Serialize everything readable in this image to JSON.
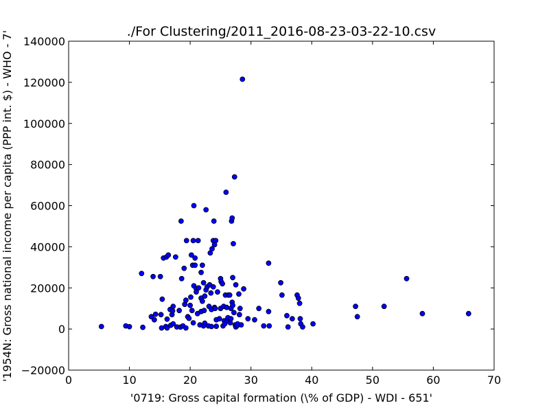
{
  "chart_data": {
    "type": "scatter",
    "title": "./For Clustering/2011_2016-08-23-03-22-10.csv",
    "xlabel": "'0719: Gross capital formation  (\\% of GDP) - WDI - 651'",
    "ylabel": "'1954N: Gross national income per capita (PPP int. $) - WHO - 7'",
    "xlim": [
      0,
      70
    ],
    "ylim": [
      -20000,
      140000
    ],
    "x_ticks": [
      0,
      10,
      20,
      30,
      40,
      50,
      60,
      70
    ],
    "y_ticks": [
      -20000,
      0,
      20000,
      40000,
      60000,
      80000,
      100000,
      120000,
      140000
    ],
    "grid": false,
    "marker_color": "#0000ff",
    "points": [
      [
        5.4,
        1200
      ],
      [
        9.4,
        1500
      ],
      [
        10.0,
        1100
      ],
      [
        12.2,
        800
      ],
      [
        12.0,
        27000
      ],
      [
        13.6,
        6000
      ],
      [
        13.9,
        25500
      ],
      [
        14.1,
        4500
      ],
      [
        14.3,
        7200
      ],
      [
        15.1,
        25500
      ],
      [
        15.2,
        7000
      ],
      [
        15.3,
        500
      ],
      [
        15.4,
        14500
      ],
      [
        15.6,
        34500
      ],
      [
        16.0,
        1200
      ],
      [
        16.1,
        35000
      ],
      [
        16.2,
        4800
      ],
      [
        16.2,
        500
      ],
      [
        16.4,
        36000
      ],
      [
        16.7,
        9500
      ],
      [
        16.8,
        1800
      ],
      [
        17.0,
        7000
      ],
      [
        17.1,
        8800
      ],
      [
        17.2,
        2500
      ],
      [
        17.2,
        11000
      ],
      [
        17.6,
        35000
      ],
      [
        17.8,
        1000
      ],
      [
        18.2,
        9000
      ],
      [
        18.4,
        900
      ],
      [
        18.5,
        52500
      ],
      [
        18.6,
        24500
      ],
      [
        18.8,
        1500
      ],
      [
        19.0,
        29500
      ],
      [
        19.1,
        12000
      ],
      [
        19.3,
        500
      ],
      [
        19.3,
        14000
      ],
      [
        19.4,
        43000
      ],
      [
        19.6,
        6000
      ],
      [
        19.8,
        5200
      ],
      [
        20.0,
        11500
      ],
      [
        20.1,
        15500
      ],
      [
        20.2,
        36000
      ],
      [
        20.3,
        9000
      ],
      [
        20.4,
        31000
      ],
      [
        20.5,
        3000
      ],
      [
        20.5,
        43000
      ],
      [
        20.6,
        60000
      ],
      [
        20.6,
        21000
      ],
      [
        20.8,
        34500
      ],
      [
        20.8,
        31000
      ],
      [
        21.0,
        19500
      ],
      [
        21.0,
        18000
      ],
      [
        21.2,
        7500
      ],
      [
        21.3,
        43000
      ],
      [
        21.4,
        20000
      ],
      [
        21.6,
        2000
      ],
      [
        21.8,
        8500
      ],
      [
        21.8,
        15000
      ],
      [
        21.8,
        27500
      ],
      [
        22.0,
        13500
      ],
      [
        22.0,
        31000
      ],
      [
        22.2,
        22500
      ],
      [
        22.2,
        1500
      ],
      [
        22.3,
        9000
      ],
      [
        22.4,
        16000
      ],
      [
        22.4,
        2800
      ],
      [
        22.6,
        58000
      ],
      [
        22.6,
        19000
      ],
      [
        22.8,
        20500
      ],
      [
        23.0,
        1500
      ],
      [
        23.1,
        11000
      ],
      [
        23.2,
        21500
      ],
      [
        23.3,
        37000
      ],
      [
        23.4,
        17500
      ],
      [
        23.5,
        1200
      ],
      [
        23.5,
        9500
      ],
      [
        23.6,
        39000
      ],
      [
        23.8,
        43000
      ],
      [
        23.9,
        52500
      ],
      [
        23.8,
        20500
      ],
      [
        24.0,
        10500
      ],
      [
        24.0,
        41000
      ],
      [
        24.1,
        10000
      ],
      [
        24.2,
        43000
      ],
      [
        24.3,
        4500
      ],
      [
        24.3,
        1300
      ],
      [
        24.5,
        18000
      ],
      [
        24.8,
        5000
      ],
      [
        25.0,
        24500
      ],
      [
        25.0,
        10000
      ],
      [
        25.1,
        23000
      ],
      [
        25.3,
        22000
      ],
      [
        25.4,
        1500
      ],
      [
        25.5,
        11000
      ],
      [
        25.6,
        4000
      ],
      [
        25.7,
        2500
      ],
      [
        25.8,
        16500
      ],
      [
        25.9,
        66500
      ],
      [
        26.0,
        10500
      ],
      [
        26.1,
        4000
      ],
      [
        26.2,
        5500
      ],
      [
        26.3,
        16500
      ],
      [
        26.5,
        16500
      ],
      [
        26.6,
        3000
      ],
      [
        26.7,
        10000
      ],
      [
        26.7,
        5000
      ],
      [
        26.8,
        52500
      ],
      [
        26.9,
        13000
      ],
      [
        26.9,
        54000
      ],
      [
        27.0,
        25000
      ],
      [
        27.0,
        11500
      ],
      [
        27.1,
        41500
      ],
      [
        27.2,
        8000
      ],
      [
        27.3,
        74000
      ],
      [
        27.4,
        2000
      ],
      [
        27.5,
        21500
      ],
      [
        27.5,
        1000
      ],
      [
        27.7,
        1500
      ],
      [
        27.8,
        2500
      ],
      [
        28.0,
        17000
      ],
      [
        28.1,
        7000
      ],
      [
        28.2,
        10000
      ],
      [
        28.4,
        2000
      ],
      [
        28.6,
        121500
      ],
      [
        28.8,
        19500
      ],
      [
        29.5,
        5000
      ],
      [
        30.6,
        4500
      ],
      [
        31.3,
        10000
      ],
      [
        32.1,
        1500
      ],
      [
        32.9,
        32000
      ],
      [
        32.9,
        8500
      ],
      [
        33.0,
        1500
      ],
      [
        34.9,
        22500
      ],
      [
        35.1,
        16500
      ],
      [
        35.9,
        6500
      ],
      [
        36.1,
        1000
      ],
      [
        36.8,
        5000
      ],
      [
        37.6,
        16500
      ],
      [
        37.8,
        15000
      ],
      [
        38.0,
        12500
      ],
      [
        38.1,
        5000
      ],
      [
        38.2,
        2500
      ],
      [
        38.5,
        1000
      ],
      [
        40.2,
        2500
      ],
      [
        47.2,
        11000
      ],
      [
        47.5,
        6000
      ],
      [
        51.9,
        11000
      ],
      [
        55.6,
        24500
      ],
      [
        58.2,
        7500
      ],
      [
        65.8,
        7500
      ]
    ]
  }
}
